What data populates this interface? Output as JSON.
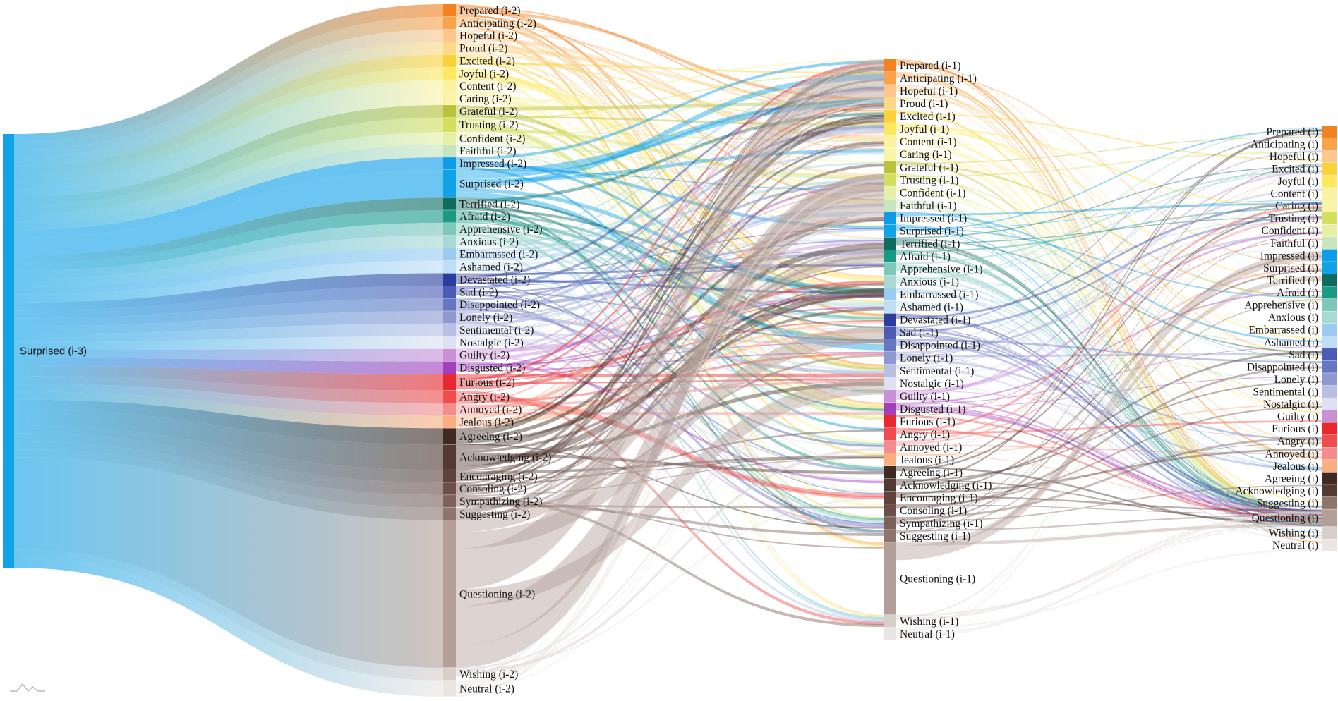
{
  "source": {
    "label": "Surprised (i-3)",
    "color": "#11a3e8"
  },
  "emotions": [
    {
      "key": "Prepared",
      "color": "#f58220"
    },
    {
      "key": "Anticipating",
      "color": "#f9a44a"
    },
    {
      "key": "Hopeful",
      "color": "#fbc78c"
    },
    {
      "key": "Proud",
      "color": "#fcd889"
    },
    {
      "key": "Excited",
      "color": "#fcd23b"
    },
    {
      "key": "Joyful",
      "color": "#fde85e"
    },
    {
      "key": "Content",
      "color": "#fbf3a2"
    },
    {
      "key": "Caring",
      "color": "#fbf3a8"
    },
    {
      "key": "Grateful",
      "color": "#b8c23a"
    },
    {
      "key": "Trusting",
      "color": "#d3e05f"
    },
    {
      "key": "Confident",
      "color": "#e6f0a4"
    },
    {
      "key": "Faithful",
      "color": "#c9e5bd"
    },
    {
      "key": "Impressed",
      "color": "#0d9ce8"
    },
    {
      "key": "Surprised",
      "color": "#11a3e8"
    },
    {
      "key": "Terrified",
      "color": "#0d6b5f"
    },
    {
      "key": "Afraid",
      "color": "#1a9a84"
    },
    {
      "key": "Apprehensive",
      "color": "#7dc8bb"
    },
    {
      "key": "Anxious",
      "color": "#a9d9d3"
    },
    {
      "key": "Embarrassed",
      "color": "#9ccbf0"
    },
    {
      "key": "Ashamed",
      "color": "#bfdef5"
    },
    {
      "key": "Devastated",
      "color": "#2a3f9d"
    },
    {
      "key": "Sad",
      "color": "#4a5cb4"
    },
    {
      "key": "Disappointed",
      "color": "#6677c2"
    },
    {
      "key": "Lonely",
      "color": "#8e99d1"
    },
    {
      "key": "Sentimental",
      "color": "#b8bfe3"
    },
    {
      "key": "Nostalgic",
      "color": "#dde1f3"
    },
    {
      "key": "Guilty",
      "color": "#c990d6"
    },
    {
      "key": "Disgusted",
      "color": "#a43fbc"
    },
    {
      "key": "Furious",
      "color": "#e8282c"
    },
    {
      "key": "Angry",
      "color": "#f24b4b"
    },
    {
      "key": "Annoyed",
      "color": "#f48b8d"
    },
    {
      "key": "Jealous",
      "color": "#fbae7e"
    },
    {
      "key": "Agreeing",
      "color": "#3f2a22"
    },
    {
      "key": "Acknowledging",
      "color": "#523931"
    },
    {
      "key": "Encouraging",
      "color": "#5f433a"
    },
    {
      "key": "Consoling",
      "color": "#6e4f47"
    },
    {
      "key": "Sympathizing",
      "color": "#7e625a"
    },
    {
      "key": "Suggesting",
      "color": "#8d756e"
    },
    {
      "key": "Questioning",
      "color": "#b49f98"
    },
    {
      "key": "Wishing",
      "color": "#d8cfcb"
    },
    {
      "key": "Neutral",
      "color": "#ebe6e4"
    }
  ],
  "columns": [
    {
      "id": "i2",
      "items": [
        {
          "label": "Prepared (i-2)",
          "key": "Prepared",
          "w": 1
        },
        {
          "label": "Anticipating (i-2)",
          "key": "Anticipating",
          "w": 1
        },
        {
          "label": "Hopeful (i-2)",
          "key": "Hopeful",
          "w": 1
        },
        {
          "label": "Proud (i-2)",
          "key": "Proud",
          "w": 1
        },
        {
          "label": "Excited (i-2)",
          "key": "Excited",
          "w": 1
        },
        {
          "label": "Joyful (i-2)",
          "key": "Joyful",
          "w": 1
        },
        {
          "label": "Content (i-2)",
          "key": "Content",
          "w": 1
        },
        {
          "label": "Caring (i-2)",
          "key": "Caring",
          "w": 1
        },
        {
          "label": "Grateful (i-2)",
          "key": "Grateful",
          "w": 1
        },
        {
          "label": "Trusting (i-2)",
          "key": "Trusting",
          "w": 1.15
        },
        {
          "label": "Confident (i-2)",
          "key": "Confident",
          "w": 1
        },
        {
          "label": "Faithful (i-2)",
          "key": "Faithful",
          "w": 1
        },
        {
          "label": "Impressed (i-2)",
          "key": "Impressed",
          "w": 1
        },
        {
          "label": "Surprised (i-2)",
          "key": "Surprised",
          "w": 2.2
        },
        {
          "label": "Terrified (i-2)",
          "key": "Terrified",
          "w": 1
        },
        {
          "label": "Afraid (i-2)",
          "key": "Afraid",
          "w": 1
        },
        {
          "label": "Apprehensive (i-2)",
          "key": "Apprehensive",
          "w": 1
        },
        {
          "label": "Anxious (i-2)",
          "key": "Anxious",
          "w": 1
        },
        {
          "label": "Embarrassed (i-2)",
          "key": "Embarrassed",
          "w": 1
        },
        {
          "label": "Ashamed (i-2)",
          "key": "Ashamed",
          "w": 1
        },
        {
          "label": "Devastated (i-2)",
          "key": "Devastated",
          "w": 1
        },
        {
          "label": "Sad (i-2)",
          "key": "Sad",
          "w": 1
        },
        {
          "label": "Disappointed (i-2)",
          "key": "Disappointed",
          "w": 1
        },
        {
          "label": "Lonely (i-2)",
          "key": "Lonely",
          "w": 1
        },
        {
          "label": "Sentimental (i-2)",
          "key": "Sentimental",
          "w": 1
        },
        {
          "label": "Nostalgic (i-2)",
          "key": "Nostalgic",
          "w": 1
        },
        {
          "label": "Guilty (i-2)",
          "key": "Guilty",
          "w": 1
        },
        {
          "label": "Disgusted (i-2)",
          "key": "Disgusted",
          "w": 1
        },
        {
          "label": "Furious (i-2)",
          "key": "Furious",
          "w": 1.3
        },
        {
          "label": "Angry (i-2)",
          "key": "Angry",
          "w": 1
        },
        {
          "label": "Annoyed (i-2)",
          "key": "Annoyed",
          "w": 1
        },
        {
          "label": "Jealous (i-2)",
          "key": "Jealous",
          "w": 1
        },
        {
          "label": "Agreeing (i-2)",
          "key": "Agreeing",
          "w": 1.3
        },
        {
          "label": "Acknowledging (i-2)",
          "key": "Acknowledging",
          "w": 2
        },
        {
          "label": "Encouraging (i-2)",
          "key": "Encouraging",
          "w": 1
        },
        {
          "label": "Consoling (i-2)",
          "key": "Consoling",
          "w": 1
        },
        {
          "label": "Sympathizing (i-2)",
          "key": "Sympathizing",
          "w": 1
        },
        {
          "label": "Suggesting (i-2)",
          "key": "Suggesting",
          "w": 1
        },
        {
          "label": "Questioning (i-2)",
          "key": "Questioning",
          "w": 11.7
        },
        {
          "label": "Wishing (i-2)",
          "key": "Wishing",
          "w": 1
        },
        {
          "label": "Neutral (i-2)",
          "key": "Neutral",
          "w": 1.3
        }
      ]
    },
    {
      "id": "i1",
      "items": [
        {
          "label": "Prepared (i-1)",
          "key": "Prepared",
          "w": 1
        },
        {
          "label": "Anticipating (i-1)",
          "key": "Anticipating",
          "w": 1
        },
        {
          "label": "Hopeful (i-1)",
          "key": "Hopeful",
          "w": 1
        },
        {
          "label": "Proud (i-1)",
          "key": "Proud",
          "w": 1
        },
        {
          "label": "Excited (i-1)",
          "key": "Excited",
          "w": 1
        },
        {
          "label": "Joyful (i-1)",
          "key": "Joyful",
          "w": 1
        },
        {
          "label": "Content (i-1)",
          "key": "Content",
          "w": 1
        },
        {
          "label": "Caring (i-1)",
          "key": "Caring",
          "w": 1
        },
        {
          "label": "Grateful (i-1)",
          "key": "Grateful",
          "w": 1
        },
        {
          "label": "Trusting (i-1)",
          "key": "Trusting",
          "w": 1
        },
        {
          "label": "Confident (i-1)",
          "key": "Confident",
          "w": 1
        },
        {
          "label": "Faithful (i-1)",
          "key": "Faithful",
          "w": 1
        },
        {
          "label": "Impressed (i-1)",
          "key": "Impressed",
          "w": 1
        },
        {
          "label": "Surprised (i-1)",
          "key": "Surprised",
          "w": 1
        },
        {
          "label": "Terrified (i-1)",
          "key": "Terrified",
          "w": 1
        },
        {
          "label": "Afraid (i-1)",
          "key": "Afraid",
          "w": 1
        },
        {
          "label": "Apprehensive (i-1)",
          "key": "Apprehensive",
          "w": 1
        },
        {
          "label": "Anxious (i-1)",
          "key": "Anxious",
          "w": 1
        },
        {
          "label": "Embarrassed (i-1)",
          "key": "Embarrassed",
          "w": 1
        },
        {
          "label": "Ashamed (i-1)",
          "key": "Ashamed",
          "w": 1
        },
        {
          "label": "Devastated (i-1)",
          "key": "Devastated",
          "w": 1
        },
        {
          "label": "Sad (i-1)",
          "key": "Sad",
          "w": 1
        },
        {
          "label": "Disappointed (i-1)",
          "key": "Disappointed",
          "w": 1
        },
        {
          "label": "Lonely (i-1)",
          "key": "Lonely",
          "w": 1
        },
        {
          "label": "Sentimental (i-1)",
          "key": "Sentimental",
          "w": 1
        },
        {
          "label": "Nostalgic (i-1)",
          "key": "Nostalgic",
          "w": 1
        },
        {
          "label": "Guilty (i-1)",
          "key": "Guilty",
          "w": 1
        },
        {
          "label": "Disgusted (i-1)",
          "key": "Disgusted",
          "w": 1
        },
        {
          "label": "Furious (i-1)",
          "key": "Furious",
          "w": 1
        },
        {
          "label": "Angry (i-1)",
          "key": "Angry",
          "w": 1
        },
        {
          "label": "Annoyed (i-1)",
          "key": "Annoyed",
          "w": 1
        },
        {
          "label": "Jealous (i-1)",
          "key": "Jealous",
          "w": 1
        },
        {
          "label": "Agreeing (i-1)",
          "key": "Agreeing",
          "w": 1
        },
        {
          "label": "Acknowledging (i-1)",
          "key": "Acknowledging",
          "w": 1
        },
        {
          "label": "Encouraging (i-1)",
          "key": "Encouraging",
          "w": 1
        },
        {
          "label": "Consoling (i-1)",
          "key": "Consoling",
          "w": 1
        },
        {
          "label": "Sympathizing (i-1)",
          "key": "Sympathizing",
          "w": 1
        },
        {
          "label": "Suggesting (i-1)",
          "key": "Suggesting",
          "w": 1
        },
        {
          "label": "Questioning (i-1)",
          "key": "Questioning",
          "w": 5.7
        },
        {
          "label": "Wishing (i-1)",
          "key": "Wishing",
          "w": 1
        },
        {
          "label": "Neutral (i-1)",
          "key": "Neutral",
          "w": 1
        }
      ]
    },
    {
      "id": "i0",
      "items": [
        {
          "label": "Prepared (i)",
          "key": "Prepared",
          "w": 1
        },
        {
          "label": "Anticipating (i)",
          "key": "Anticipating",
          "w": 1
        },
        {
          "label": "Hopeful (i)",
          "key": "Hopeful",
          "w": 1
        },
        {
          "label": "Excited (i)",
          "key": "Excited",
          "w": 1
        },
        {
          "label": "Joyful (i)",
          "key": "Joyful",
          "w": 1
        },
        {
          "label": "Content (i)",
          "key": "Content",
          "w": 1
        },
        {
          "label": "Caring (i)",
          "key": "Caring",
          "w": 1
        },
        {
          "label": "Trusting (i)",
          "key": "Trusting",
          "w": 1
        },
        {
          "label": "Confident (i)",
          "key": "Confident",
          "w": 1
        },
        {
          "label": "Faithful (i)",
          "key": "Faithful",
          "w": 1
        },
        {
          "label": "Impressed (i)",
          "key": "Impressed",
          "w": 1
        },
        {
          "label": "Surprised (i)",
          "key": "Surprised",
          "w": 1
        },
        {
          "label": "Terrified (i)",
          "key": "Terrified",
          "w": 1
        },
        {
          "label": "Afraid (i)",
          "key": "Afraid",
          "w": 1
        },
        {
          "label": "Apprehensive (i)",
          "key": "Apprehensive",
          "w": 1
        },
        {
          "label": "Anxious (i)",
          "key": "Anxious",
          "w": 1
        },
        {
          "label": "Embarrassed (i)",
          "key": "Embarrassed",
          "w": 1
        },
        {
          "label": "Ashamed (i)",
          "key": "Ashamed",
          "w": 1
        },
        {
          "label": "Sad (i)",
          "key": "Sad",
          "w": 1
        },
        {
          "label": "Disappointed (i)",
          "key": "Disappointed",
          "w": 1
        },
        {
          "label": "Lonely (i)",
          "key": "Lonely",
          "w": 1
        },
        {
          "label": "Sentimental (i)",
          "key": "Sentimental",
          "w": 1
        },
        {
          "label": "Nostalgic (i)",
          "key": "Nostalgic",
          "w": 1
        },
        {
          "label": "Guilty (i)",
          "key": "Guilty",
          "w": 1
        },
        {
          "label": "Furious (i)",
          "key": "Furious",
          "w": 1
        },
        {
          "label": "Angry (i)",
          "key": "Angry",
          "w": 1
        },
        {
          "label": "Annoyed (i)",
          "key": "Annoyed",
          "w": 1
        },
        {
          "label": "Jealous (i)",
          "key": "Jealous",
          "w": 1
        },
        {
          "label": "Agreeing (i)",
          "key": "Agreeing",
          "w": 1
        },
        {
          "label": "Acknowledging (i)",
          "key": "Acknowledging",
          "w": 1
        },
        {
          "label": "Suggesting (i)",
          "key": "Suggesting",
          "w": 1
        },
        {
          "label": "Questioning (i)",
          "key": "Questioning",
          "w": 1.4
        },
        {
          "label": "Wishing (i)",
          "key": "Wishing",
          "w": 1
        },
        {
          "label": "Neutral (i)",
          "key": "Neutral",
          "w": 1
        }
      ]
    }
  ]
}
